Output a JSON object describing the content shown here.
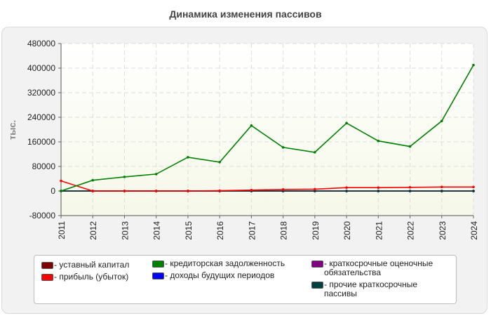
{
  "chart_data": {
    "type": "line",
    "title": "Динамика изменения пассивов",
    "xlabel": "",
    "ylabel": "тыс.",
    "ylim": [
      -80000,
      480000
    ],
    "yticks": [
      "-80000",
      "0",
      "80000",
      "160000",
      "240000",
      "320000",
      "400000",
      "480000"
    ],
    "categories": [
      "2011",
      "2012",
      "2013",
      "2014",
      "2015",
      "2016",
      "2017",
      "2018",
      "2019",
      "2020",
      "2021",
      "2022",
      "2023",
      "2024"
    ],
    "grid": true,
    "legend_position": "bottom",
    "series": [
      {
        "name": "уставный капитал",
        "color": "#800000",
        "values": [
          0,
          0,
          0,
          0,
          0,
          0,
          0,
          0,
          0,
          0,
          0,
          0,
          0,
          0
        ]
      },
      {
        "name": "прибыль (убыток)",
        "color": "#ff0000",
        "values": [
          33000,
          0,
          0,
          0,
          0,
          1000,
          3000,
          5000,
          6000,
          11000,
          11000,
          12000,
          13000,
          13000
        ]
      },
      {
        "name": "кредиторская задолженность",
        "color": "#008000",
        "values": [
          0,
          35000,
          46000,
          55000,
          110000,
          94000,
          213000,
          142000,
          126000,
          221000,
          163000,
          145000,
          228000,
          410000
        ]
      },
      {
        "name": "доходы будущих периодов",
        "color": "#0000ff",
        "values": [
          0,
          0,
          0,
          0,
          0,
          0,
          0,
          0,
          0,
          0,
          0,
          0,
          0,
          0
        ]
      },
      {
        "name": "краткосрочные оценочные обязательства",
        "color": "#800080",
        "values": [
          0,
          0,
          0,
          0,
          0,
          0,
          0,
          0,
          0,
          0,
          0,
          0,
          0,
          0
        ]
      },
      {
        "name": "прочие краткосрочные пассивы",
        "color": "#004040",
        "values": [
          0,
          0,
          0,
          0,
          0,
          0,
          0,
          0,
          0,
          0,
          0,
          0,
          0,
          0
        ]
      }
    ]
  },
  "legend": [
    {
      "label": "- уставный капитал",
      "color": "#800000"
    },
    {
      "label": "- прибыль (убыток)",
      "color": "#ff0000"
    },
    {
      "label": "- кредиторская задолженность",
      "color": "#008000"
    },
    {
      "label": "- доходы будущих периодов",
      "color": "#0000ff"
    },
    {
      "label": "- краткосрочные оценочные обязательства",
      "color": "#800080"
    },
    {
      "label": "- прочие краткосрочные пассивы",
      "color": "#004040"
    }
  ]
}
